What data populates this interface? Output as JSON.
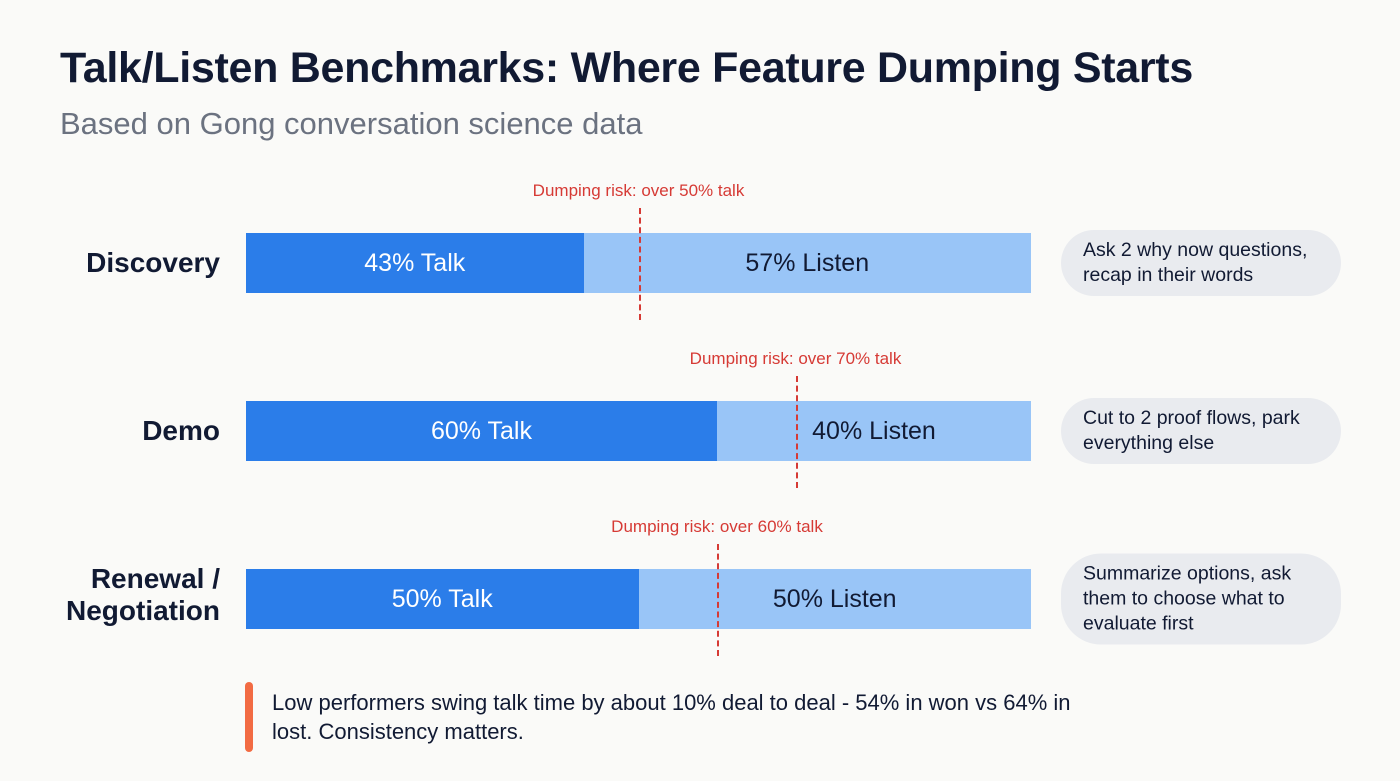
{
  "chart_data": {
    "type": "bar",
    "orientation": "horizontal",
    "stacked": true,
    "title": "Talk/Listen Benchmarks: Where Feature Dumping Starts",
    "subtitle": "Based on Gong conversation science data",
    "categories": [
      "Discovery",
      "Demo",
      "Renewal / Negotiation"
    ],
    "series": [
      {
        "name": "Talk",
        "values": [
          43,
          60,
          50
        ],
        "color": "#2b7de9"
      },
      {
        "name": "Listen",
        "values": [
          57,
          40,
          50
        ],
        "color": "#99c5f7"
      }
    ],
    "segment_labels": [
      [
        "43% Talk",
        "57% Listen"
      ],
      [
        "60% Talk",
        "40% Listen"
      ],
      [
        "50% Talk",
        "50% Listen"
      ]
    ],
    "thresholds": [
      {
        "value": 50,
        "label": "Dumping risk: over 50% talk"
      },
      {
        "value": 70,
        "label": "Dumping risk: over 70% talk"
      },
      {
        "value": 60,
        "label": "Dumping risk: over 60% talk"
      }
    ],
    "threshold_color": "#d63a35",
    "notes": [
      "Ask 2 why now questions, recap in their words",
      "Cut to 2 proof flows, park everything else",
      "Summarize options, ask them to choose what to evaluate first"
    ],
    "xlim": [
      0,
      100
    ],
    "grid": false
  },
  "callout": {
    "text": "Low performers swing talk time by about 10% deal to deal - 54% in won vs 64% in lost. Consistency matters.",
    "accent_color": "#f26b43"
  }
}
